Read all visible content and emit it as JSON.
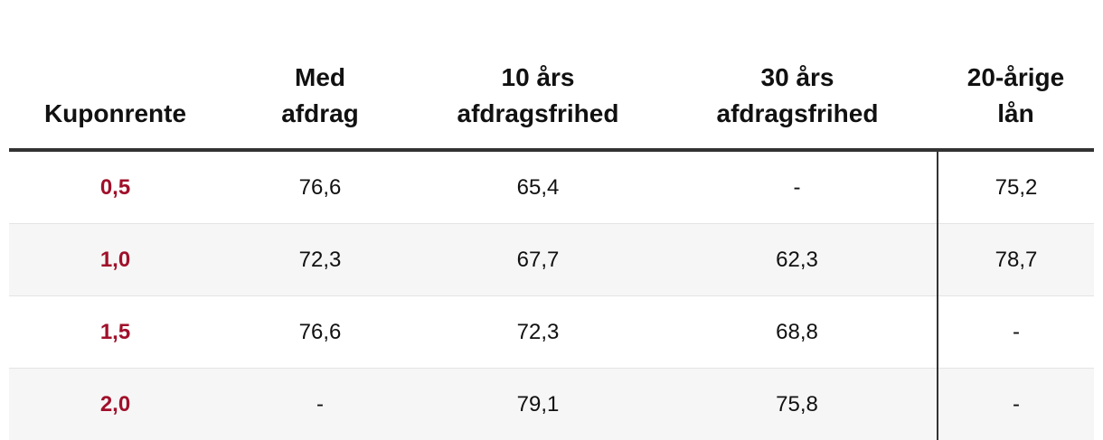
{
  "table": {
    "headers": [
      "Kuponrente",
      "Med afdrag",
      "10 års afdragsfrihed",
      "30 års afdragsfrihed",
      "20-årige lån"
    ],
    "rows": [
      [
        "0,5",
        "76,6",
        "65,4",
        "-",
        "75,2"
      ],
      [
        "1,0",
        "72,3",
        "67,7",
        "62,3",
        "78,7"
      ],
      [
        "1,5",
        "76,6",
        "72,3",
        "68,8",
        "-"
      ],
      [
        "2,0",
        "-",
        "79,1",
        "75,8",
        "-"
      ]
    ]
  }
}
